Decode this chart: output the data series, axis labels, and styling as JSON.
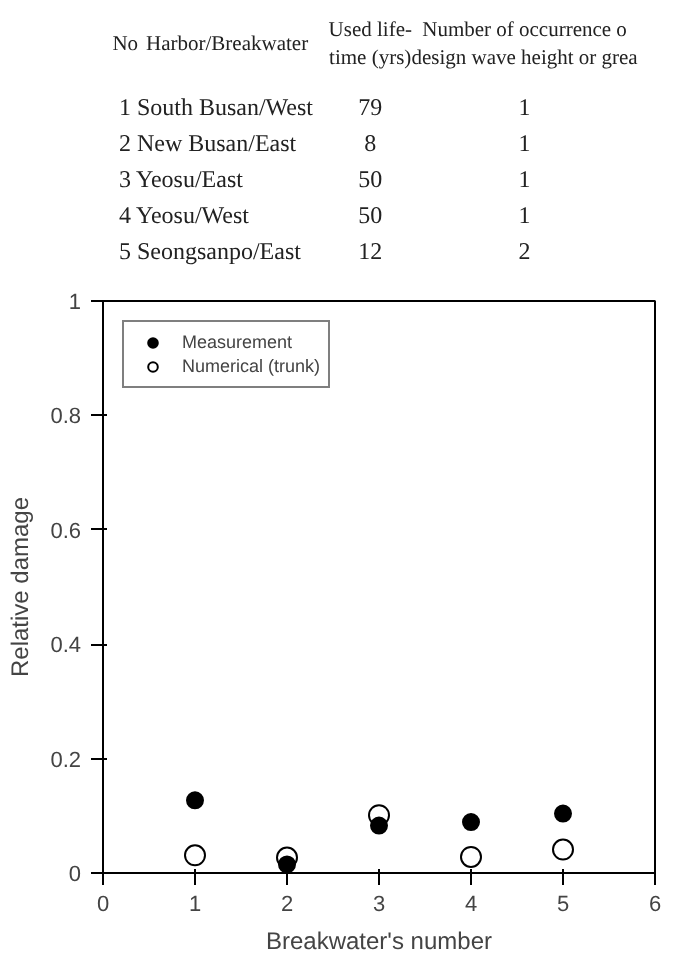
{
  "chart_data": [
    {
      "type": "other",
      "categories": [
        "No",
        "Harbor/Breakwater",
        "Used life-\ntime (yrs)",
        "Number of occurrence o\ndesign wave height or grea"
      ],
      "annotations": [
        "1 South Busan/West",
        "79",
        "1",
        "2 New Busan/East",
        "8",
        "1",
        "3 Yeosu/East",
        "50",
        "1",
        "4 Yeosu/West",
        "50",
        "1",
        "5 Seongsanpo/East",
        "12",
        "2"
      ]
    },
    {
      "type": "scatter",
      "xlabel": "Breakwater's number",
      "ylabel": "Relative damage",
      "x": [
        1,
        2,
        3,
        4,
        5
      ],
      "xlim": [
        0,
        6
      ],
      "xticks": [
        0,
        1,
        2,
        3,
        4,
        5,
        6
      ],
      "ylim": [
        0,
        1
      ],
      "yticks": [
        0,
        0.2,
        0.4,
        0.6,
        0.8,
        1
      ],
      "legend": "top left",
      "grid": false,
      "series": [
        {
          "name": "Measurement",
          "color": "#000000",
          "marker": "circle",
          "values": [
            0.127,
            0.015,
            0.083,
            0.089,
            0.104
          ]
        },
        {
          "name": "Numerical (trunk)",
          "color": "#ffffff",
          "marker": "circle",
          "values": [
            0.031,
            0.027,
            0.101,
            0.028,
            0.041
          ]
        }
      ]
    }
  ]
}
